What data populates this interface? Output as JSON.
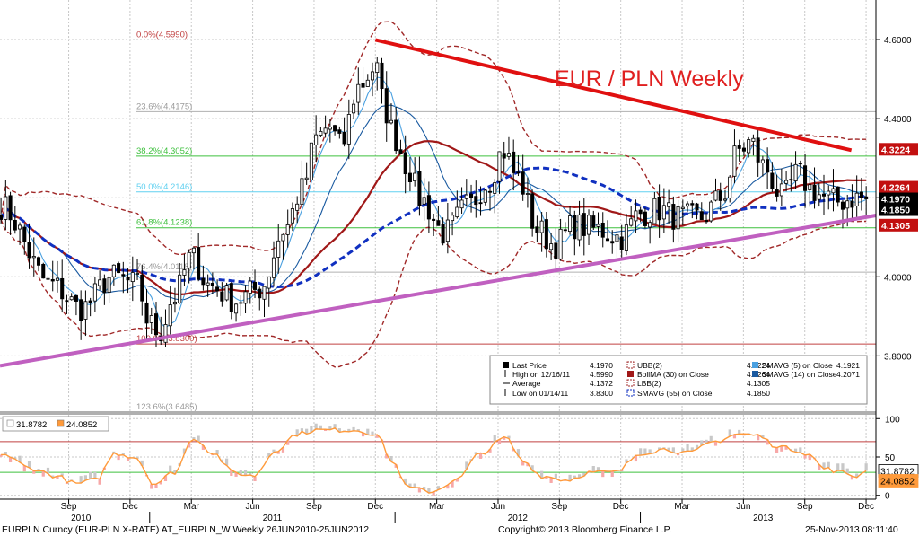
{
  "chart_data": {
    "type": "candlestick",
    "title": "EUR / PLN Weekly",
    "colors": {
      "background": "#ffffff",
      "grid": "#c8c8c8",
      "candle": "#000000",
      "resistance_line": "#e01010",
      "support_line": "#c060c0",
      "bollinger_bands": "#a02828",
      "bollinger_ma": "#a01818",
      "smavg55": "#1030c0",
      "smavg5": "#4aa0e0",
      "smavg14": "#1a5aa0",
      "fib_line": "#3ec03e",
      "fib_50": "#60d0f0",
      "fib_extreme": "#c04040",
      "fib_neutral": "#b0b0b0",
      "label_red": "#c21010",
      "label_black": "#000000",
      "oscillator_line": "#ff9a3a",
      "oscillator_shade_pos": "#c8c8c8",
      "oscillator_shade_neg": "#f7a8a8",
      "oscillator_green": "#3ec03e",
      "oscillator_red": "#c04040",
      "title_color": "#e02020"
    },
    "y_axis": {
      "ylim": [
        3.66,
        4.7
      ],
      "ticks": [
        3.8,
        4.0,
        4.2,
        4.4,
        4.6
      ],
      "tick_labels": [
        "3.8000",
        "4.0000",
        "4.2000",
        "4.4000",
        "4.6000"
      ]
    },
    "oscillator_axis": {
      "ylim": [
        -5,
        105
      ],
      "ticks": [
        0,
        50,
        100
      ],
      "tick_labels": [
        "0",
        "50",
        "100"
      ]
    },
    "x_range": [
      2010.39,
      2013.96
    ],
    "month_ticks": [
      {
        "label": "Sep",
        "x": 2010.67
      },
      {
        "label": "Dec",
        "x": 2010.92
      },
      {
        "label": "Mar",
        "x": 2011.17
      },
      {
        "label": "Jun",
        "x": 2011.42
      },
      {
        "label": "Sep",
        "x": 2011.67
      },
      {
        "label": "Dec",
        "x": 2011.92
      },
      {
        "label": "Mar",
        "x": 2012.17
      },
      {
        "label": "Jun",
        "x": 2012.42
      },
      {
        "label": "Sep",
        "x": 2012.67
      },
      {
        "label": "Dec",
        "x": 2012.92
      },
      {
        "label": "Mar",
        "x": 2013.17
      },
      {
        "label": "Jun",
        "x": 2013.42
      },
      {
        "label": "Sep",
        "x": 2013.67
      },
      {
        "label": "Dec",
        "x": 2013.92
      }
    ],
    "year_labels": [
      {
        "label": "2010",
        "x": 2010.72
      },
      {
        "label": "2011",
        "x": 2011.5
      },
      {
        "label": "2012",
        "x": 2012.5
      },
      {
        "label": "2013",
        "x": 2013.5
      }
    ],
    "year_separators": [
      2011.0,
      2012.0,
      2013.0
    ],
    "fib_levels": [
      {
        "label": "0.0%(4.5990)",
        "value": 4.599,
        "style": "extreme"
      },
      {
        "label": "23.6%(4.4175)",
        "value": 4.4175,
        "style": "neutral"
      },
      {
        "label": "38.2%(4.3052)",
        "value": 4.3052,
        "style": "green"
      },
      {
        "label": "50.0%(4.2146)",
        "value": 4.2146,
        "style": "cyan"
      },
      {
        "label": "61.8%(4.1238)",
        "value": 4.1238,
        "style": "green"
      },
      {
        "label": "76.4%(4.0118)",
        "value": 4.0118,
        "style": "neutral"
      },
      {
        "label": "100.0%(3.8300)",
        "value": 3.83,
        "style": "extreme"
      },
      {
        "label": "123.6%(3.6485)",
        "value": 3.6485,
        "style": "neutral"
      }
    ],
    "price_key": [
      2010.39,
      4.18,
      2010.6,
      3.98,
      2010.72,
      3.92,
      2010.85,
      4.0,
      2010.95,
      3.98,
      2011.0,
      3.88,
      2011.04,
      3.86,
      2011.1,
      3.95,
      2011.17,
      4.05,
      2011.24,
      3.98,
      2011.35,
      3.94,
      2011.45,
      3.97,
      2011.55,
      4.12,
      2011.62,
      4.22,
      2011.68,
      4.35,
      2011.73,
      4.38,
      2011.78,
      4.33,
      2011.85,
      4.48,
      2011.92,
      4.53,
      2011.96,
      4.42,
      2012.0,
      4.35,
      2012.05,
      4.28,
      2012.1,
      4.2,
      2012.2,
      4.11,
      2012.3,
      4.18,
      2012.38,
      4.24,
      2012.44,
      4.32,
      2012.5,
      4.25,
      2012.58,
      4.12,
      2012.65,
      4.08,
      2012.73,
      4.13,
      2012.82,
      4.12,
      2012.92,
      4.1,
      2013.0,
      4.16,
      2013.08,
      4.17,
      2013.15,
      4.15,
      2013.25,
      4.15,
      2013.33,
      4.2,
      2013.4,
      4.32,
      2013.45,
      4.34,
      2013.5,
      4.28,
      2013.58,
      4.2,
      2013.64,
      4.26,
      2013.7,
      4.22,
      2013.75,
      4.2,
      2013.8,
      4.19,
      2013.88,
      4.2,
      2013.92,
      4.197
    ],
    "price_noise": 0.035,
    "candle_range": 0.05,
    "ohlc_seed": 7,
    "osc_key": [
      2010.39,
      55,
      2010.52,
      35,
      2010.62,
      25,
      2010.7,
      15,
      2010.78,
      20,
      2010.86,
      55,
      2010.94,
      50,
      2011.02,
      15,
      2011.1,
      30,
      2011.18,
      75,
      2011.26,
      55,
      2011.34,
      30,
      2011.42,
      25,
      2011.52,
      60,
      2011.6,
      80,
      2011.68,
      85,
      2011.76,
      85,
      2011.84,
      85,
      2011.92,
      80,
      2012.0,
      40,
      2012.05,
      10,
      2012.15,
      5,
      2012.25,
      20,
      2012.35,
      55,
      2012.45,
      75,
      2012.52,
      45,
      2012.6,
      25,
      2012.7,
      20,
      2012.8,
      30,
      2012.9,
      30,
      2013.0,
      55,
      2013.1,
      60,
      2013.2,
      55,
      2013.3,
      70,
      2013.4,
      80,
      2013.48,
      78,
      2013.55,
      65,
      2013.62,
      60,
      2013.68,
      55,
      2013.75,
      35,
      2013.82,
      30,
      2013.88,
      25,
      2013.93,
      31.8782
    ],
    "osc_noise": 6,
    "bollinger_period": 30,
    "bollinger_k": 2,
    "smavg_periods": {
      "fast": 5,
      "medium": 14,
      "slow": 55
    },
    "resistance_line": [
      [
        2011.92,
        4.599
      ],
      [
        2013.86,
        4.32
      ]
    ],
    "support_line": [
      [
        2010.39,
        3.775
      ],
      [
        2013.96,
        4.155
      ]
    ],
    "oscillator_levels": [
      {
        "value": 70,
        "style": "red"
      },
      {
        "value": 30,
        "style": "green"
      }
    ],
    "price_labels": [
      {
        "text": "4.3224",
        "value": 4.3224,
        "style": "red"
      },
      {
        "text": "4.2264",
        "value": 4.2264,
        "style": "red"
      },
      {
        "text": "4.1970",
        "value": 4.197,
        "style": "black"
      },
      {
        "text": "4.1850",
        "value": 4.185,
        "style": "black"
      },
      {
        "text": "4.1305",
        "value": 4.1305,
        "style": "red"
      }
    ],
    "osc_labels": [
      {
        "text": "31.8782",
        "value": 31.8782,
        "style": "white"
      },
      {
        "text": "24.0852",
        "value": 24.0852,
        "style": "orange"
      }
    ],
    "osc_legend": [
      {
        "text": "31.8782",
        "style": "white"
      },
      {
        "text": "24.0852",
        "style": "orange"
      }
    ],
    "legend": [
      {
        "label": "Last Price",
        "value": "4.1970",
        "style": "price"
      },
      {
        "label": "High on 12/16/11",
        "value": "4.5990",
        "style": "high"
      },
      {
        "label": "Average",
        "value": "4.1372",
        "style": "avg"
      },
      {
        "label": "Low on 01/14/11",
        "value": "3.8300",
        "style": "low"
      },
      {
        "label": "UBB(2)",
        "value": "4.3224",
        "style": "band"
      },
      {
        "label": "BollMA (30) on Close",
        "value": "4.2264",
        "style": "bollma"
      },
      {
        "label": "LBB(2)",
        "value": "4.1305",
        "style": "band"
      },
      {
        "label": "SMAVG (55) on Close",
        "value": "4.1850",
        "style": "sma55"
      },
      {
        "label": "SMAVG (5) on Close",
        "value": "4.1921",
        "style": "sma5"
      },
      {
        "label": "SMAVG (14) on Close",
        "value": "4.2071",
        "style": "sma14"
      }
    ]
  },
  "footer": {
    "left": "EURPLN Curncy (EUR-PLN X-RATE) AT_EURPLN_W  Weekly 26JUN2010-25JUN2012",
    "center": "Copyright© 2013 Bloomberg Finance L.P.",
    "right": "25-Nov-2013 08:11:40"
  }
}
